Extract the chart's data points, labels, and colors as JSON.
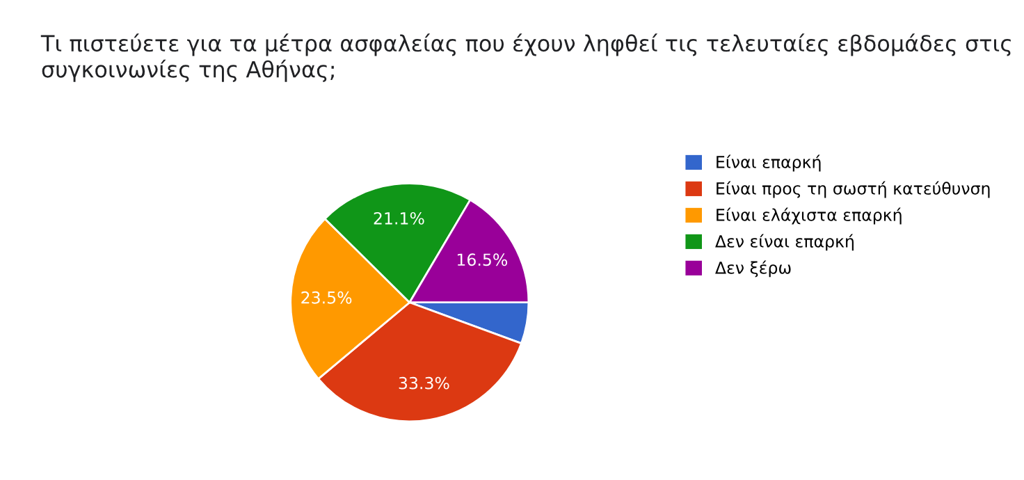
{
  "chart_data": {
    "type": "pie",
    "title": "Τι πιστεύετε για τα μέτρα ασφαλείας που έχουν ληφθεί τις τελευταίες εβδομάδες στις συγκοινωνίες της Αθήνας;",
    "categories": [
      "Είναι επαρκή",
      "Είναι προς τη σωστή κατεύθυνση",
      "Είναι ελάχιστα επαρκή",
      "Δεν είναι επαρκή",
      "Δεν ξέρω"
    ],
    "values": [
      5.6,
      33.3,
      23.5,
      21.1,
      16.5
    ],
    "value_labels": [
      null,
      "33.3%",
      "23.5%",
      "21.1%",
      "16.5%"
    ],
    "colors": [
      "#3366cc",
      "#dc3912",
      "#ff9900",
      "#109618",
      "#990099"
    ],
    "legend": "right"
  }
}
